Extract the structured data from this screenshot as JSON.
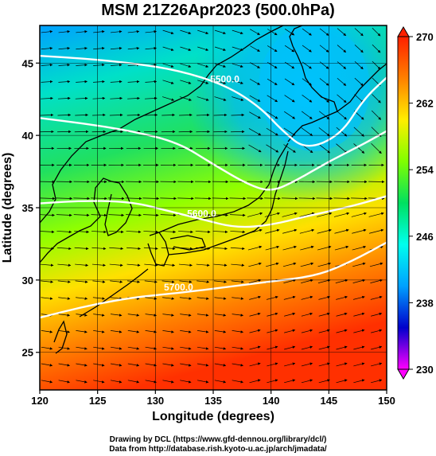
{
  "title": "MSM 21Z26Apr2023 (500.0hPa)",
  "axes": {
    "xlabel": "Longitude (degrees)",
    "ylabel": "Latitude  (degrees)",
    "xlim": [
      120,
      150
    ],
    "ylim": [
      22.4,
      47.6
    ],
    "xticks": [
      "120",
      "125",
      "130",
      "135",
      "140",
      "145",
      "150"
    ],
    "yticks": [
      "25",
      "30",
      "35",
      "40",
      "45"
    ],
    "grid": true
  },
  "colorbar": {
    "min": 230,
    "max": 270,
    "ticks": [
      "230",
      "238",
      "246",
      "254",
      "262",
      "270"
    ],
    "colors": [
      "#ff00ff",
      "#0000cc",
      "#00a0ff",
      "#00ffee",
      "#00e060",
      "#80ff00",
      "#ffee00",
      "#ff8000",
      "#ff2000"
    ]
  },
  "contours": {
    "color": "#ffffff",
    "lines": [
      {
        "label": "5500.0",
        "points": [
          [
            120,
            45.5
          ],
          [
            124,
            45.3
          ],
          [
            128,
            45.0
          ],
          [
            132,
            44.5
          ],
          [
            136,
            43.5
          ],
          [
            139,
            42.0
          ],
          [
            141,
            40.3
          ],
          [
            143,
            39.0
          ],
          [
            146,
            40.0
          ],
          [
            148,
            42.5
          ],
          [
            150,
            44.0
          ]
        ]
      },
      {
        "label": "",
        "points": [
          [
            120,
            41.2
          ],
          [
            124,
            40.8
          ],
          [
            128,
            40.3
          ],
          [
            132,
            39.5
          ],
          [
            135,
            38.0
          ],
          [
            138,
            36.6
          ],
          [
            140,
            36.1
          ],
          [
            142,
            36.8
          ],
          [
            145,
            38.2
          ],
          [
            148,
            39.4
          ],
          [
            150,
            40.3
          ]
        ]
      },
      {
        "label": "5600.0",
        "points": [
          [
            120,
            35.3
          ],
          [
            124,
            35.5
          ],
          [
            128,
            35.4
          ],
          [
            131,
            34.8
          ],
          [
            134,
            34.2
          ],
          [
            137,
            33.6
          ],
          [
            140,
            33.8
          ],
          [
            143,
            34.4
          ],
          [
            147,
            35.1
          ],
          [
            150,
            35.8
          ]
        ]
      },
      {
        "label": "5700.0",
        "points": [
          [
            120,
            27.4
          ],
          [
            124,
            28.2
          ],
          [
            128,
            28.8
          ],
          [
            132,
            29.1
          ],
          [
            136,
            29.5
          ],
          [
            140,
            29.9
          ],
          [
            144,
            30.3
          ],
          [
            147,
            31.3
          ],
          [
            150,
            32.6
          ]
        ]
      }
    ]
  },
  "credits": [
    "Drawing by DCL (https://www.gfd-dennou.org/library/dcl/)",
    "Data from http://database.rish.kyoto-u.ac.jp/arch/jmadata/"
  ]
}
